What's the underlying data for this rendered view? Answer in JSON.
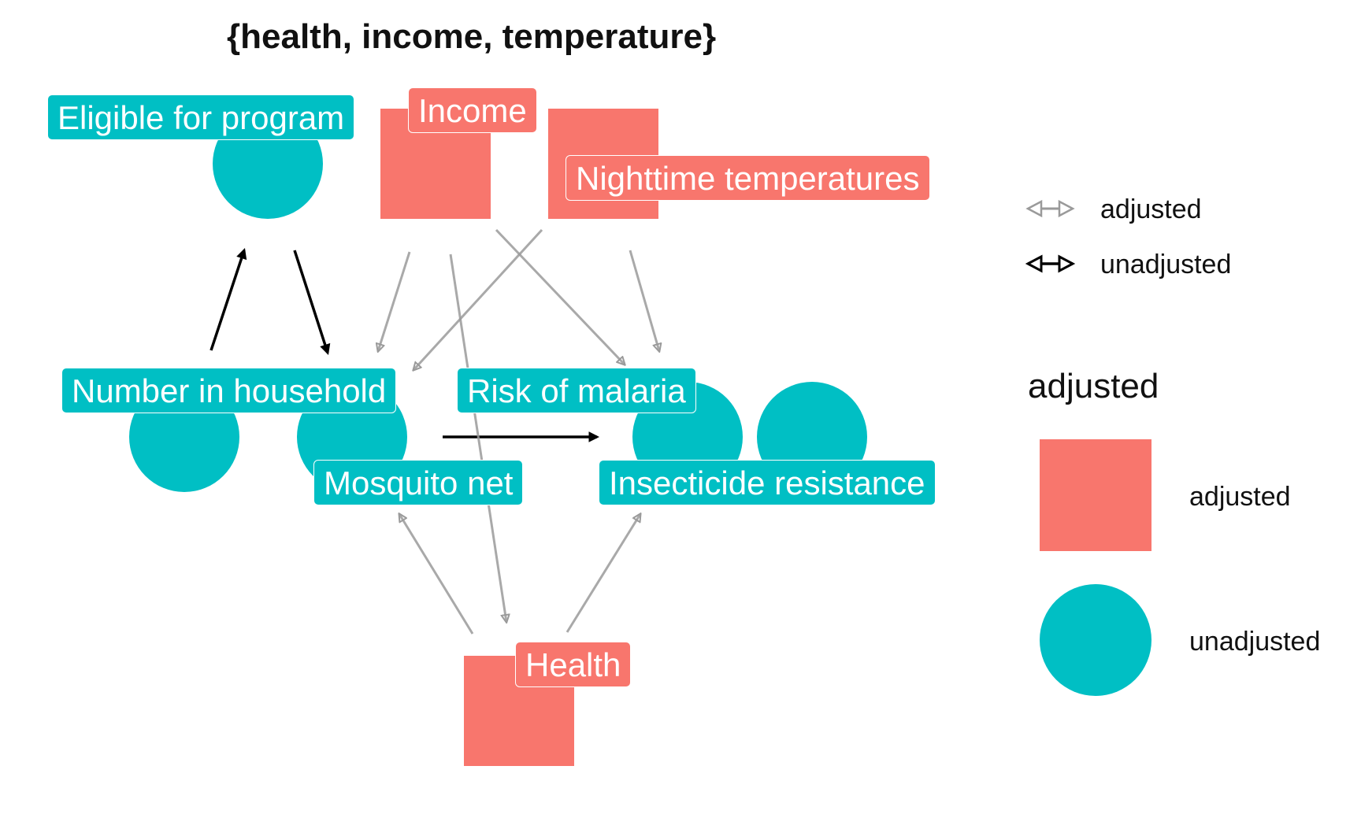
{
  "title": "{health, income, temperature}",
  "colors": {
    "adjusted": "#F8766D",
    "unadjusted": "#00BFC4",
    "edge_adjusted": "#9a9a9a",
    "edge_unadjusted": "#000000"
  },
  "nodes": [
    {
      "id": "eligible",
      "label": "Eligible for program",
      "status": "unadjusted"
    },
    {
      "id": "income",
      "label": "Income",
      "status": "adjusted"
    },
    {
      "id": "temperature",
      "label": "Nighttime temperatures",
      "status": "adjusted"
    },
    {
      "id": "household",
      "label": "Number in household",
      "status": "unadjusted"
    },
    {
      "id": "net",
      "label": "Mosquito net",
      "status": "unadjusted"
    },
    {
      "id": "malaria",
      "label": "Risk of malaria",
      "status": "unadjusted"
    },
    {
      "id": "resistance",
      "label": "Insecticide resistance",
      "status": "unadjusted"
    },
    {
      "id": "health",
      "label": "Health",
      "status": "adjusted"
    }
  ],
  "edges": [
    {
      "from": "household",
      "to": "eligible",
      "status": "unadjusted"
    },
    {
      "from": "eligible",
      "to": "net",
      "status": "unadjusted"
    },
    {
      "from": "net",
      "to": "malaria",
      "status": "unadjusted"
    },
    {
      "from": "income",
      "to": "net",
      "status": "adjusted"
    },
    {
      "from": "income",
      "to": "malaria",
      "status": "adjusted"
    },
    {
      "from": "income",
      "to": "health",
      "status": "adjusted"
    },
    {
      "from": "temperature",
      "to": "net",
      "status": "adjusted"
    },
    {
      "from": "temperature",
      "to": "malaria",
      "status": "adjusted"
    },
    {
      "from": "health",
      "to": "net",
      "status": "adjusted"
    },
    {
      "from": "health",
      "to": "resistance",
      "status": "adjusted"
    }
  ],
  "legend": {
    "edges": {
      "adjusted": "adjusted",
      "unadjusted": "unadjusted"
    },
    "shapes": {
      "title": "adjusted",
      "adjusted": "adjusted",
      "unadjusted": "unadjusted"
    }
  }
}
